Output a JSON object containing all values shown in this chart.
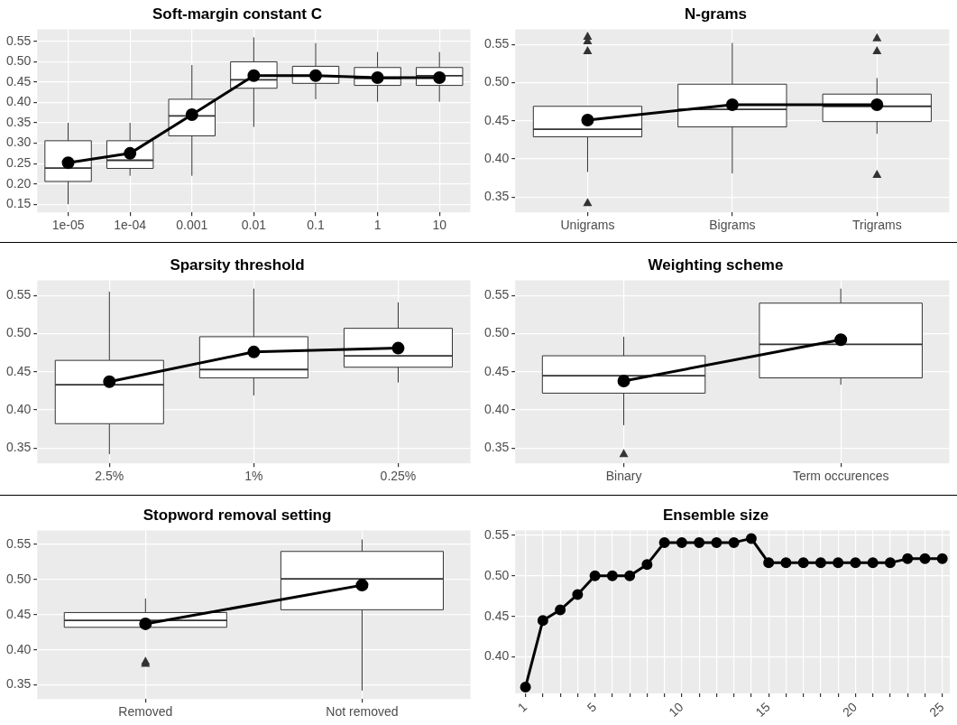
{
  "chart_data": [
    {
      "type": "box",
      "title": "Soft-margin constant C",
      "categories": [
        "1e-05",
        "1e-04",
        "0.001",
        "0.01",
        "0.1",
        "1",
        "10"
      ],
      "boxes": [
        {
          "low": 0.15,
          "q1": 0.206,
          "median": 0.239,
          "q3": 0.306,
          "high": 0.35
        },
        {
          "low": 0.22,
          "q1": 0.238,
          "median": 0.258,
          "q3": 0.306,
          "high": 0.35
        },
        {
          "low": 0.22,
          "q1": 0.318,
          "median": 0.367,
          "q3": 0.408,
          "high": 0.492
        },
        {
          "low": 0.34,
          "q1": 0.435,
          "median": 0.456,
          "q3": 0.5,
          "high": 0.56
        },
        {
          "low": 0.408,
          "q1": 0.447,
          "median": 0.466,
          "q3": 0.489,
          "high": 0.546
        },
        {
          "low": 0.402,
          "q1": 0.442,
          "median": 0.459,
          "q3": 0.486,
          "high": 0.524
        },
        {
          "low": 0.402,
          "q1": 0.442,
          "median": 0.466,
          "q3": 0.486,
          "high": 0.524
        }
      ],
      "series": [
        {
          "type": "line",
          "color": "#000000",
          "marker": "circle",
          "values": [
            0.252,
            0.275,
            0.37,
            0.466,
            0.466,
            0.461,
            0.461
          ]
        }
      ],
      "ylim": [
        0.13,
        0.58
      ],
      "yticks": [
        {
          "value": 0.15,
          "label": "0.15"
        },
        {
          "value": 0.2,
          "label": "0.20"
        },
        0.25,
        {
          "value": 0.3,
          "label": "0.30"
        },
        0.35,
        {
          "value": 0.4,
          "label": "0.40"
        },
        0.45,
        {
          "value": 0.5,
          "label": "0.50"
        },
        0.55
      ],
      "grid": true
    },
    {
      "type": "box",
      "title": "N-grams",
      "categories": [
        "Unigrams",
        "Bigrams",
        "Trigrams"
      ],
      "boxes": [
        {
          "low": 0.383,
          "q1": 0.429,
          "median": 0.439,
          "q3": 0.469,
          "high": 0.469,
          "outliers": [
            0.561,
            0.555,
            0.542,
            0.343
          ]
        },
        {
          "low": 0.381,
          "q1": 0.442,
          "median": 0.465,
          "q3": 0.498,
          "high": 0.552
        },
        {
          "low": 0.433,
          "q1": 0.449,
          "median": 0.469,
          "q3": 0.485,
          "high": 0.506,
          "outliers": [
            0.559,
            0.542,
            0.38
          ]
        }
      ],
      "series": [
        {
          "type": "line",
          "color": "#000000",
          "marker": "circle",
          "values": [
            0.451,
            0.471,
            0.471
          ]
        }
      ],
      "ylim": [
        0.33,
        0.57
      ],
      "yticks": [
        0.35,
        {
          "value": 0.4,
          "label": "0.40"
        },
        0.45,
        {
          "value": 0.5,
          "label": "0.50"
        },
        0.55
      ],
      "grid": true
    },
    {
      "type": "box",
      "title": "Sparsity threshold",
      "categories": [
        "2.5%",
        "1%",
        "0.25%"
      ],
      "boxes": [
        {
          "low": 0.342,
          "q1": 0.382,
          "median": 0.433,
          "q3": 0.465,
          "high": 0.555
        },
        {
          "low": 0.419,
          "q1": 0.442,
          "median": 0.453,
          "q3": 0.496,
          "high": 0.559
        },
        {
          "low": 0.436,
          "q1": 0.456,
          "median": 0.471,
          "q3": 0.507,
          "high": 0.541
        }
      ],
      "series": [
        {
          "type": "line",
          "color": "#000000",
          "marker": "circle",
          "values": [
            0.437,
            0.476,
            0.481
          ]
        }
      ],
      "ylim": [
        0.33,
        0.57
      ],
      "yticks": [
        0.35,
        {
          "value": 0.4,
          "label": "0.40"
        },
        0.45,
        {
          "value": 0.5,
          "label": "0.50"
        },
        0.55
      ],
      "grid": true
    },
    {
      "type": "box",
      "title": "Weighting scheme",
      "categories": [
        "Binary",
        "Term occurences"
      ],
      "boxes": [
        {
          "low": 0.38,
          "q1": 0.422,
          "median": 0.445,
          "q3": 0.471,
          "high": 0.496,
          "outliers": [
            0.343
          ]
        },
        {
          "low": 0.433,
          "q1": 0.442,
          "median": 0.486,
          "q3": 0.54,
          "high": 0.559
        }
      ],
      "series": [
        {
          "type": "line",
          "color": "#000000",
          "marker": "circle",
          "values": [
            0.438,
            0.492
          ]
        }
      ],
      "ylim": [
        0.33,
        0.57
      ],
      "yticks": [
        0.35,
        {
          "value": 0.4,
          "label": "0.40"
        },
        0.45,
        {
          "value": 0.5,
          "label": "0.50"
        },
        0.55
      ],
      "grid": true
    },
    {
      "type": "box",
      "title": "Stopword removal setting",
      "categories": [
        "Removed",
        "Not removed"
      ],
      "boxes": [
        {
          "low": 0.432,
          "q1": 0.432,
          "median": 0.442,
          "q3": 0.453,
          "high": 0.473,
          "outliers": [
            0.384,
            0.381
          ]
        },
        {
          "low": 0.342,
          "q1": 0.457,
          "median": 0.501,
          "q3": 0.54,
          "high": 0.557
        }
      ],
      "series": [
        {
          "type": "line",
          "color": "#000000",
          "marker": "circle",
          "values": [
            0.437,
            0.492
          ]
        }
      ],
      "ylim": [
        0.33,
        0.57
      ],
      "yticks": [
        0.35,
        {
          "value": 0.4,
          "label": "0.40"
        },
        0.45,
        {
          "value": 0.5,
          "label": "0.50"
        },
        0.55
      ],
      "grid": true
    },
    {
      "type": "line",
      "title": "Ensemble size",
      "x": [
        1,
        2,
        3,
        4,
        5,
        6,
        7,
        8,
        9,
        10,
        11,
        12,
        13,
        14,
        15,
        16,
        17,
        18,
        19,
        20,
        21,
        22,
        23,
        24,
        25
      ],
      "values": [
        0.363,
        0.445,
        0.458,
        0.477,
        0.5,
        0.5,
        0.5,
        0.514,
        0.541,
        0.541,
        0.541,
        0.541,
        0.541,
        0.546,
        0.516,
        0.516,
        0.516,
        0.516,
        0.516,
        0.516,
        0.516,
        0.516,
        0.521,
        0.521,
        0.521
      ],
      "color": "#000000",
      "marker": "circle",
      "xlim": [
        0.41,
        25.43
      ],
      "xticks": [
        1,
        {
          "value": 2,
          "label": null
        },
        {
          "value": 3,
          "label": null
        },
        {
          "value": 4,
          "label": null
        },
        5,
        {
          "value": 6,
          "label": null
        },
        {
          "value": 7,
          "label": null
        },
        {
          "value": 8,
          "label": null
        },
        {
          "value": 9,
          "label": null
        },
        10,
        {
          "value": 11,
          "label": null
        },
        {
          "value": 12,
          "label": null
        },
        {
          "value": 13,
          "label": null
        },
        {
          "value": 14,
          "label": null
        },
        15,
        {
          "value": 16,
          "label": null
        },
        {
          "value": 17,
          "label": null
        },
        {
          "value": 18,
          "label": null
        },
        {
          "value": 19,
          "label": null
        },
        20,
        {
          "value": 21,
          "label": null
        },
        {
          "value": 22,
          "label": null
        },
        {
          "value": 23,
          "label": null
        },
        {
          "value": 24,
          "label": null
        },
        25
      ],
      "ylim": [
        0.355,
        0.556
      ],
      "yticks": [
        {
          "value": 0.4,
          "label": "0.40"
        },
        0.45,
        {
          "value": 0.5,
          "label": "0.50"
        },
        0.55
      ],
      "grid": true
    }
  ]
}
